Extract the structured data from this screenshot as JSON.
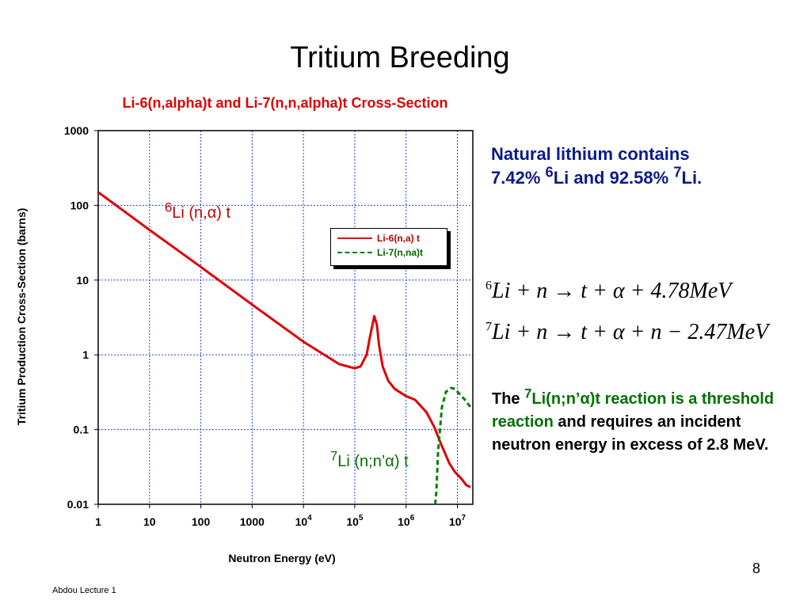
{
  "slide": {
    "title": "Tritium Breeding",
    "page_number": "8",
    "footer": "Abdou Lecture 1"
  },
  "annotations": {
    "li6_mass": "6",
    "li6_rest": "Li (n,α) t",
    "li7_mass": "7",
    "li7_rest": "Li (n;n’α) t"
  },
  "natural": {
    "line1": "Natural lithium contains",
    "pct6": "7.42% ",
    "m6": "6",
    "mid": "Li and 92.58% ",
    "m7": "7",
    "end": "Li."
  },
  "equations": [
    {
      "sup": "6",
      "text": "Li + n → t + α + 4.78MeV"
    },
    {
      "sup": "7",
      "text": "Li + n → t + α + n − 2.47MeV"
    }
  ],
  "threshold": {
    "the": "The ",
    "sup": "7",
    "reaction": "Li(n;n’α)t reaction is a threshold reaction",
    "rest": " and requires an incident neutron energy in excess of 2.8 MeV."
  },
  "colors": {
    "li6_series": "#e00000",
    "li7_series": "#008000",
    "grid": "#2040ff",
    "chart_title": "#e00000",
    "natural_text": "#0a1a8c"
  },
  "chart_data": {
    "type": "line",
    "title": "Li-6(n,alpha)t and Li-7(n,n,alpha)t Cross-Section",
    "xlabel": "Neutron Energy (eV)",
    "ylabel": "Tritium Production Cross-Section (barns)",
    "x_scale": "log",
    "y_scale": "log",
    "xlim": [
      1,
      20000000
    ],
    "ylim": [
      0.01,
      1000
    ],
    "grid": true,
    "legend_position": "upper-right",
    "x_ticks": [
      {
        "value": 1,
        "base": "1",
        "exp": ""
      },
      {
        "value": 10,
        "base": "10",
        "exp": ""
      },
      {
        "value": 100,
        "base": "100",
        "exp": ""
      },
      {
        "value": 1000,
        "base": "1000",
        "exp": ""
      },
      {
        "value": 10000,
        "base": "10",
        "exp": "4"
      },
      {
        "value": 100000,
        "base": "10",
        "exp": "5"
      },
      {
        "value": 1000000,
        "base": "10",
        "exp": "6"
      },
      {
        "value": 10000000,
        "base": "10",
        "exp": "7"
      }
    ],
    "y_ticks": [
      {
        "value": 1000,
        "label": "1000"
      },
      {
        "value": 100,
        "label": "100"
      },
      {
        "value": 10,
        "label": "10"
      },
      {
        "value": 1,
        "label": "1"
      },
      {
        "value": 0.1,
        "label": "0.1"
      },
      {
        "value": 0.01,
        "label": "0.01"
      }
    ],
    "series": [
      {
        "name": "Li-6(n,a) t",
        "style": "solid",
        "points": [
          [
            1,
            150
          ],
          [
            10,
            47
          ],
          [
            100,
            15
          ],
          [
            1000,
            4.7
          ],
          [
            10000,
            1.5
          ],
          [
            50000,
            0.75
          ],
          [
            100000,
            0.66
          ],
          [
            130000,
            0.7
          ],
          [
            170000,
            1.0
          ],
          [
            200000,
            1.8
          ],
          [
            240000,
            3.3
          ],
          [
            270000,
            2.5
          ],
          [
            300000,
            1.3
          ],
          [
            350000,
            0.7
          ],
          [
            450000,
            0.45
          ],
          [
            600000,
            0.35
          ],
          [
            1000000,
            0.28
          ],
          [
            1500000,
            0.25
          ],
          [
            2500000,
            0.17
          ],
          [
            3500000,
            0.11
          ],
          [
            5000000,
            0.06
          ],
          [
            7000000,
            0.035
          ],
          [
            9000000,
            0.027
          ],
          [
            12000000,
            0.022
          ],
          [
            15000000,
            0.018
          ],
          [
            18000000,
            0.017
          ]
        ]
      },
      {
        "name": "Li-7(n,na)t",
        "style": "dashed",
        "points": [
          [
            3700000,
            0.01
          ],
          [
            3900000,
            0.015
          ],
          [
            4200000,
            0.05
          ],
          [
            5000000,
            0.2
          ],
          [
            6000000,
            0.32
          ],
          [
            7500000,
            0.36
          ],
          [
            9000000,
            0.35
          ],
          [
            11000000,
            0.3
          ],
          [
            14000000,
            0.25
          ],
          [
            17000000,
            0.21
          ],
          [
            20000000,
            0.19
          ]
        ]
      }
    ]
  }
}
